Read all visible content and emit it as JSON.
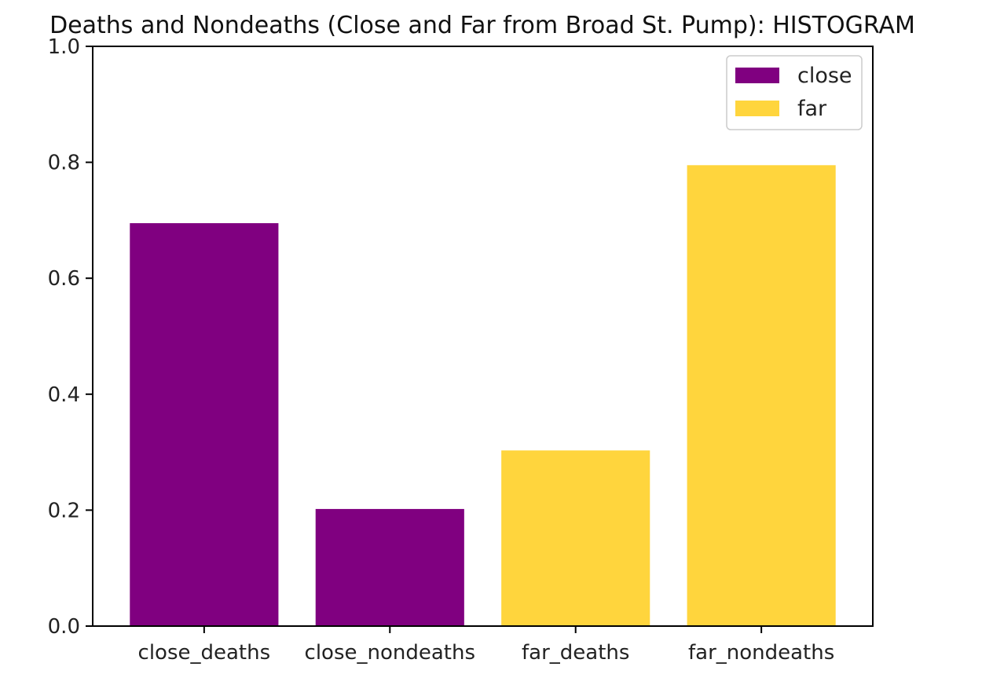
{
  "chart_data": {
    "type": "bar",
    "title": "Deaths and Nondeaths (Close and Far from Broad St. Pump): HISTOGRAM",
    "xlabel": "",
    "ylabel": "",
    "ylim": [
      0,
      1.0
    ],
    "yticks": [
      "0.0",
      "0.2",
      "0.4",
      "0.6",
      "0.8",
      "1.0"
    ],
    "categories": [
      "close_deaths",
      "close_nondeaths",
      "far_deaths",
      "far_nondeaths"
    ],
    "series": [
      {
        "name": "close",
        "color": "#800080",
        "values": [
          0.695,
          0.202,
          null,
          null
        ]
      },
      {
        "name": "far",
        "color": "#FFD53D",
        "values": [
          null,
          null,
          0.303,
          0.795
        ]
      }
    ],
    "legend": {
      "position": "top-right",
      "entries": [
        "close",
        "far"
      ]
    },
    "grid": false
  }
}
